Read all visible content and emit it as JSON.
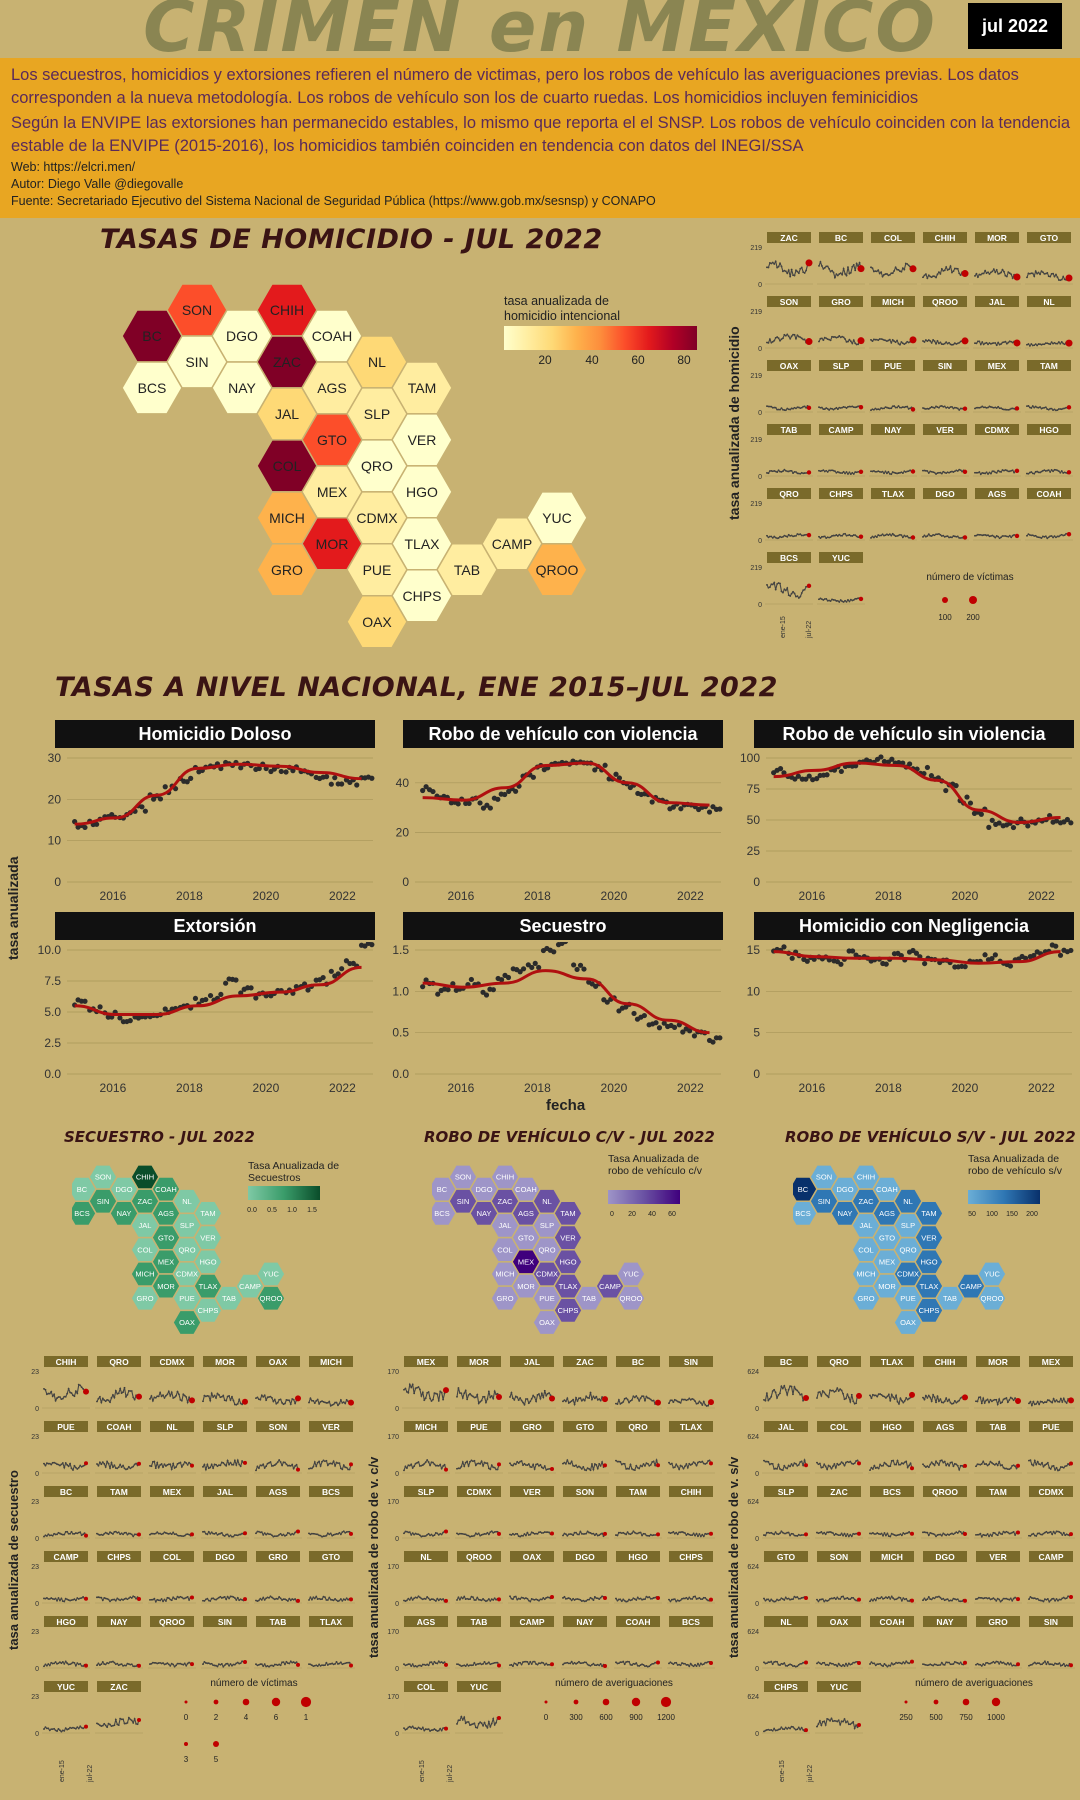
{
  "header": {
    "title": "CRIMEN en MEXICO",
    "date_badge": "jul 2022",
    "description_1": "Los secuestros, homicidios y extorsiones refieren el número de victimas, pero los robos de vehículo las averiguaciones previas. Los datos corresponden a la nueva metodología. Los robos de vehículo son los de cuarto ruedas. Los homicidios incluyen feminicidios",
    "description_2": "Según la ENVIPE las extorsiones han permanecido estables, lo mismo que reporta el el SNSP. Los robos de vehículo coinciden con la tendencia estable de la ENVIPE (2015-2016), los homicidios también coinciden en tendencia con datos del INEGI/SSA",
    "web": "Web: https://elcri.men/",
    "author": "Autor: Diego Valle @diegovalle",
    "source": "Fuente: Secretariado Ejecutivo del Sistema Nacional de Seguridad Pública (https://www.gob.mx/sesnsp) y CONAPO"
  },
  "colors": {
    "background": "#c8b272",
    "band": "#e8a622",
    "trend": "#b01010",
    "point": "#2b2b2b",
    "homicide_scale": [
      "#ffffcc",
      "#ffeda0",
      "#fed976",
      "#feb24c",
      "#fd8d3c",
      "#fc4e2a",
      "#e31a1c",
      "#b10026",
      "#800026"
    ],
    "secuestro_scale": [
      "#7fc9a5",
      "#3a9c6a",
      "#0a4d2a"
    ],
    "robo_cv_scale": [
      "#9e95c8",
      "#6a51a3",
      "#3f007d"
    ],
    "robo_sv_scale": [
      "#6baed6",
      "#2f77b4",
      "#08306b"
    ]
  },
  "hex_map": {
    "title": "TASAS DE HOMICIDIO - JUL 2022",
    "legend_title": "tasa anualizada de homicidio intencional",
    "legend_ticks": [
      "20",
      "40",
      "60",
      "80"
    ],
    "states": [
      {
        "abbr": "SON",
        "level": 5
      },
      {
        "abbr": "CHIH",
        "level": 6
      },
      {
        "abbr": "BC",
        "level": 8
      },
      {
        "abbr": "DGO",
        "level": 0
      },
      {
        "abbr": "COAH",
        "level": 0
      },
      {
        "abbr": "SIN",
        "level": 0
      },
      {
        "abbr": "ZAC",
        "level": 8
      },
      {
        "abbr": "NL",
        "level": 2
      },
      {
        "abbr": "BCS",
        "level": 0
      },
      {
        "abbr": "NAY",
        "level": 0
      },
      {
        "abbr": "AGS",
        "level": 1
      },
      {
        "abbr": "TAM",
        "level": 1
      },
      {
        "abbr": "JAL",
        "level": 2
      },
      {
        "abbr": "SLP",
        "level": 1
      },
      {
        "abbr": "GTO",
        "level": 5
      },
      {
        "abbr": "VER",
        "level": 0
      },
      {
        "abbr": "COL",
        "level": 8
      },
      {
        "abbr": "QRO",
        "level": 0
      },
      {
        "abbr": "MEX",
        "level": 1
      },
      {
        "abbr": "HGO",
        "level": 0
      },
      {
        "abbr": "MICH",
        "level": 3
      },
      {
        "abbr": "CDMX",
        "level": 1
      },
      {
        "abbr": "YUC",
        "level": 0
      },
      {
        "abbr": "MOR",
        "level": 6
      },
      {
        "abbr": "TLAX",
        "level": 0
      },
      {
        "abbr": "CAMP",
        "level": 1
      },
      {
        "abbr": "GRO",
        "level": 3
      },
      {
        "abbr": "PUE",
        "level": 1
      },
      {
        "abbr": "TAB",
        "level": 1
      },
      {
        "abbr": "QROO",
        "level": 3
      },
      {
        "abbr": "CHPS",
        "level": 0
      },
      {
        "abbr": "OAX",
        "level": 2
      }
    ]
  },
  "homicide_small_multiples": {
    "ylabel": "tasa anualizada de homicidio",
    "ytick_top": "219",
    "ytick_zero": "0",
    "x_start": "ene-15",
    "x_end": "jul-22",
    "rows": [
      [
        "ZAC",
        "BC",
        "COL",
        "CHIH",
        "MOR",
        "GTO"
      ],
      [
        "SON",
        "GRO",
        "MICH",
        "QROO",
        "JAL",
        "NL"
      ],
      [
        "OAX",
        "SLP",
        "PUE",
        "SIN",
        "MEX",
        "TAM"
      ],
      [
        "TAB",
        "CAMP",
        "NAY",
        "VER",
        "CDMX",
        "HGO"
      ],
      [
        "QRO",
        "CHPS",
        "TLAX",
        "DGO",
        "AGS",
        "COAH"
      ],
      [
        "BCS",
        "YUC"
      ]
    ],
    "legend_title": "número de víctimas",
    "legend_values": [
      "100",
      "200"
    ]
  },
  "national": {
    "title": "TASAS A NIVEL NACIONAL, ENE 2015–JUL 2022",
    "ylabel": "tasa anualizada",
    "xlabel": "fecha",
    "x_ticks": [
      "2016",
      "2018",
      "2020",
      "2022"
    ]
  },
  "chart_data": [
    {
      "type": "line",
      "title": "Homicidio Doloso",
      "ylim": [
        0,
        30
      ],
      "y_ticks": [
        "0",
        "10",
        "20",
        "30"
      ],
      "x": [
        "2015",
        "2016",
        "2017",
        "2018",
        "2019",
        "2020",
        "2021",
        "2022"
      ],
      "trend": [
        14,
        15.5,
        21,
        27.5,
        28.5,
        28,
        26.5,
        25
      ],
      "points": [
        14,
        14.8,
        15.5,
        16.2,
        18,
        20.5,
        22.5,
        25,
        27.2,
        28.3,
        28.5,
        28.2,
        28,
        27.6,
        27,
        26.2,
        25.4,
        24.5,
        24.2,
        25.5
      ]
    },
    {
      "type": "line",
      "title": "Robo de vehículo con violencia",
      "ylim": [
        0,
        50
      ],
      "y_ticks": [
        "0",
        "20",
        "40"
      ],
      "x": [
        "2015",
        "2016",
        "2017",
        "2018",
        "2019",
        "2020",
        "2021",
        "2022"
      ],
      "trend": [
        34,
        33,
        38,
        47,
        48,
        40,
        32,
        31
      ],
      "points": [
        37,
        34,
        32,
        33,
        31,
        34,
        38,
        42,
        46,
        48,
        49,
        48,
        46,
        43,
        39,
        36,
        33,
        31,
        31,
        30,
        29
      ]
    },
    {
      "type": "line",
      "title": "Robo de vehículo sin violencia",
      "ylim": [
        0,
        100
      ],
      "y_ticks": [
        "0",
        "25",
        "50",
        "75",
        "100"
      ],
      "x": [
        "2015",
        "2016",
        "2017",
        "2018",
        "2019",
        "2020",
        "2021",
        "2022"
      ],
      "trend": [
        85,
        90,
        96,
        94,
        82,
        58,
        48,
        52
      ],
      "points": [
        90,
        86,
        83,
        85,
        90,
        93,
        96,
        98,
        96,
        94,
        90,
        84,
        76,
        66,
        56,
        47,
        46,
        48,
        50,
        51,
        48
      ]
    },
    {
      "type": "line",
      "title": "Extorsión",
      "ylim": [
        0,
        10
      ],
      "y_ticks": [
        "0.0",
        "2.5",
        "5.0",
        "7.5",
        "10.0"
      ],
      "x": [
        "2015",
        "2016",
        "2017",
        "2018",
        "2019",
        "2020",
        "2021",
        "2022"
      ],
      "trend": [
        5.5,
        4.8,
        4.8,
        5.5,
        6.3,
        6.6,
        7.2,
        8.6
      ],
      "points": [
        5.7,
        5.2,
        4.8,
        4.5,
        4.6,
        4.9,
        5.0,
        5.4,
        5.8,
        6.2,
        7.4,
        6.8,
        6.4,
        6.6,
        6.8,
        7.0,
        7.5,
        8.2,
        9.0,
        10.5
      ]
    },
    {
      "type": "line",
      "title": "Secuestro",
      "ylim": [
        0,
        1.5
      ],
      "y_ticks": [
        "0.0",
        "0.5",
        "1.0",
        "1.5"
      ],
      "x": [
        "2015",
        "2016",
        "2017",
        "2018",
        "2019",
        "2020",
        "2021",
        "2022"
      ],
      "trend": [
        1.1,
        1.05,
        1.1,
        1.25,
        1.15,
        0.85,
        0.65,
        0.5
      ],
      "points": [
        1.1,
        1.0,
        1.05,
        1.1,
        1.0,
        1.15,
        1.25,
        1.3,
        1.5,
        1.6,
        1.3,
        1.1,
        0.9,
        0.8,
        0.7,
        0.6,
        0.6,
        0.55,
        0.5,
        0.4
      ]
    },
    {
      "type": "line",
      "title": "Homicidio con Negligencia",
      "ylim": [
        0,
        15
      ],
      "y_ticks": [
        "0",
        "5",
        "10",
        "15"
      ],
      "x": [
        "2015",
        "2016",
        "2017",
        "2018",
        "2019",
        "2020",
        "2021",
        "2022"
      ],
      "trend": [
        14.8,
        14.2,
        14.0,
        14.0,
        13.8,
        13.4,
        13.6,
        14.8
      ],
      "points": [
        15,
        14.4,
        14,
        14.2,
        13.6,
        14.5,
        14.0,
        13.5,
        14.2,
        14.6,
        13.6,
        13.8,
        12.8,
        13.4,
        14,
        13.5,
        13.8,
        14.5,
        15.2,
        14.8
      ]
    }
  ],
  "secuestro": {
    "title": "SECUESTRO - JUL 2022",
    "legend_title": "Tasa Anualizada de Secuestros",
    "legend_ticks": [
      "0.0",
      "0.5",
      "1.0",
      "1.5"
    ],
    "highlight": [
      "CHIH"
    ],
    "small": {
      "ylabel": "tasa anualizada de secuestro",
      "ytick_top": "23",
      "ytick_zero": "0",
      "rows": [
        [
          "CHIH",
          "QRO",
          "CDMX",
          "MOR",
          "OAX",
          "MICH"
        ],
        [
          "PUE",
          "COAH",
          "NL",
          "SLP",
          "SON",
          "VER"
        ],
        [
          "BC",
          "TAM",
          "MEX",
          "JAL",
          "AGS",
          "BCS"
        ],
        [
          "CAMP",
          "CHPS",
          "COL",
          "DGO",
          "GRO",
          "GTO"
        ],
        [
          "HGO",
          "NAY",
          "QROO",
          "SIN",
          "TAB",
          "TLAX"
        ],
        [
          "YUC",
          "ZAC"
        ]
      ],
      "legend_title": "número de víctimas",
      "legend_values": [
        "0",
        "2",
        "4",
        "6",
        "1",
        "3",
        "5"
      ],
      "x_start": "ene-15",
      "x_end": "jul-22"
    }
  },
  "robo_cv": {
    "title": "ROBO DE VEHÍCULO C/V - JUL 2022",
    "legend_title": "Tasa Anualizada de robo de vehículo c/v",
    "legend_ticks": [
      "0",
      "20",
      "40",
      "60"
    ],
    "highlight": [
      "MEX"
    ],
    "small": {
      "ylabel": "tasa anualizada de robo de v. c/v",
      "ytick_top": "170",
      "ytick_zero": "0",
      "rows": [
        [
          "MEX",
          "MOR",
          "JAL",
          "ZAC",
          "BC",
          "SIN"
        ],
        [
          "MICH",
          "PUE",
          "GRO",
          "GTO",
          "QRO",
          "TLAX"
        ],
        [
          "SLP",
          "CDMX",
          "VER",
          "SON",
          "TAM",
          "CHIH"
        ],
        [
          "NL",
          "QROO",
          "OAX",
          "DGO",
          "HGO",
          "CHPS"
        ],
        [
          "AGS",
          "TAB",
          "CAMP",
          "NAY",
          "COAH",
          "BCS"
        ],
        [
          "COL",
          "YUC"
        ]
      ],
      "legend_title": "número de averiguaciones",
      "legend_values": [
        "0",
        "300",
        "600",
        "900",
        "1200"
      ],
      "x_start": "ene-15",
      "x_end": "jul-22"
    }
  },
  "robo_sv": {
    "title": "ROBO DE VEHÍCULO S/V - JUL 2022",
    "legend_title": "Tasa Anualizada de robo de vehículo s/v",
    "legend_ticks": [
      "50",
      "100",
      "150",
      "200"
    ],
    "highlight": [
      "BC"
    ],
    "small": {
      "ylabel": "tasa anualizada de robo de v. s/v",
      "ytick_top": "624",
      "ytick_zero": "0",
      "rows": [
        [
          "BC",
          "QRO",
          "TLAX",
          "CHIH",
          "MOR",
          "MEX"
        ],
        [
          "JAL",
          "COL",
          "HGO",
          "AGS",
          "TAB",
          "PUE"
        ],
        [
          "SLP",
          "ZAC",
          "BCS",
          "QROO",
          "TAM",
          "CDMX"
        ],
        [
          "GTO",
          "SON",
          "MICH",
          "DGO",
          "VER",
          "CAMP"
        ],
        [
          "NL",
          "OAX",
          "COAH",
          "NAY",
          "GRO",
          "SIN"
        ],
        [
          "CHPS",
          "YUC"
        ]
      ],
      "legend_title": "número de averiguaciones",
      "legend_values": [
        "250",
        "500",
        "750",
        "1000"
      ],
      "x_start": "ene-15",
      "x_end": "jul-22"
    }
  }
}
